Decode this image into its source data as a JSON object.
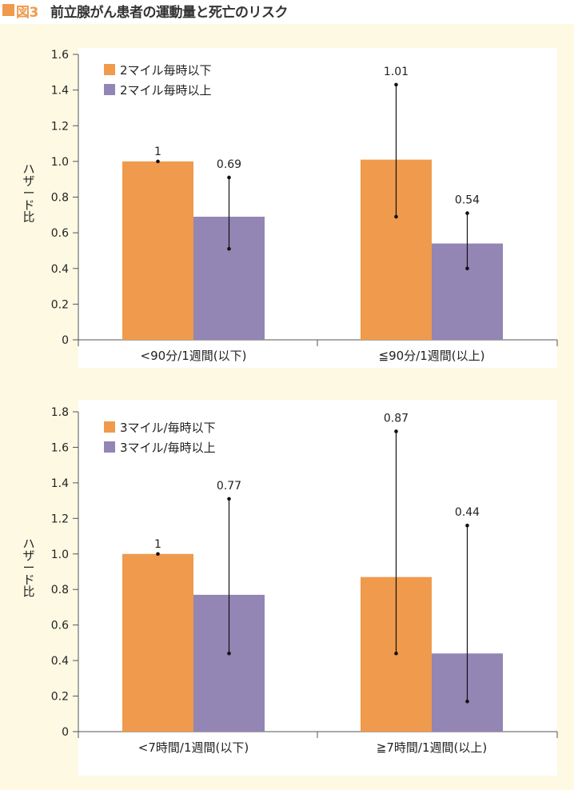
{
  "header": {
    "figure_label": "図3",
    "title": "前立腺がん患者の運動量と死亡のリスク"
  },
  "colors": {
    "orange": "#ef9a4c",
    "purple": "#9385b4",
    "background": "#fdf9e3"
  },
  "chart_data": [
    {
      "type": "bar",
      "ylabel": "ハザード比",
      "ylim": [
        0,
        1.6
      ],
      "yticks": [
        0,
        0.2,
        0.4,
        0.6,
        0.8,
        1.0,
        1.2,
        1.4,
        1.6
      ],
      "ytick_labels": [
        "0",
        "0.2",
        "0.4",
        "0.6",
        "0.8",
        "1.0",
        "1.2",
        "1.4",
        "1.6"
      ],
      "categories": [
        "<90分/1週間(以下)",
        "≦90分/1週間(以上)"
      ],
      "series": [
        {
          "name": "2マイル毎時以下",
          "color": "#ef9a4c",
          "values": [
            1,
            1.01
          ],
          "lower": [
            null,
            0.69
          ],
          "upper": [
            null,
            1.43
          ],
          "labels": [
            "1",
            "1.01"
          ]
        },
        {
          "name": "2マイル毎時以上",
          "color": "#9385b4",
          "values": [
            0.69,
            0.54
          ],
          "lower": [
            0.51,
            0.4
          ],
          "upper": [
            0.91,
            0.71
          ],
          "labels": [
            "0.69",
            "0.54"
          ]
        }
      ],
      "legend_position": "top-left",
      "grid": false
    },
    {
      "type": "bar",
      "ylabel": "ハザード比",
      "ylim": [
        0,
        1.8
      ],
      "yticks": [
        0,
        0.2,
        0.4,
        0.6,
        0.8,
        1.0,
        1.2,
        1.4,
        1.6,
        1.8
      ],
      "ytick_labels": [
        "0",
        "0.2",
        "0.4",
        "0.6",
        "0.8",
        "1.0",
        "1.2",
        "1.4",
        "1.6",
        "1.8"
      ],
      "categories": [
        "<7時間/1週間(以下)",
        "≧7時間/1週間(以上)"
      ],
      "series": [
        {
          "name": "3マイル/毎時以下",
          "color": "#ef9a4c",
          "values": [
            1,
            0.87
          ],
          "lower": [
            null,
            0.44
          ],
          "upper": [
            null,
            1.69
          ],
          "labels": [
            "1",
            "0.87"
          ]
        },
        {
          "name": "3マイル/毎時以上",
          "color": "#9385b4",
          "values": [
            0.77,
            0.44
          ],
          "lower": [
            0.44,
            0.17
          ],
          "upper": [
            1.31,
            1.16
          ],
          "labels": [
            "0.77",
            "0.44"
          ]
        }
      ],
      "legend_position": "top-left",
      "grid": false
    }
  ]
}
